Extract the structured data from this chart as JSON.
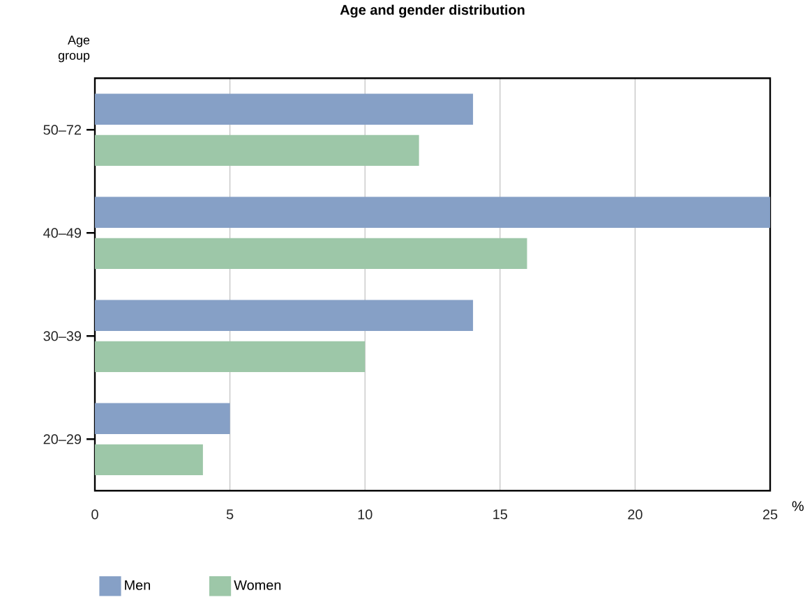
{
  "chart_data": {
    "type": "bar",
    "orientation": "horizontal",
    "title": "Age and gender distribution",
    "ylabel": "Age group",
    "xlabel": "%",
    "categories": [
      "50–72",
      "40–49",
      "30–39",
      "20–29"
    ],
    "series": [
      {
        "name": "Men",
        "color": "#86a0c6",
        "values": [
          14,
          25,
          14,
          5
        ]
      },
      {
        "name": "Women",
        "color": "#9dc7a8",
        "values": [
          12,
          16,
          10,
          4
        ]
      }
    ],
    "xlim": [
      0,
      25
    ],
    "xticks": [
      0,
      5,
      10,
      15,
      20,
      25
    ],
    "grid": "x",
    "legend": "bottom left"
  }
}
